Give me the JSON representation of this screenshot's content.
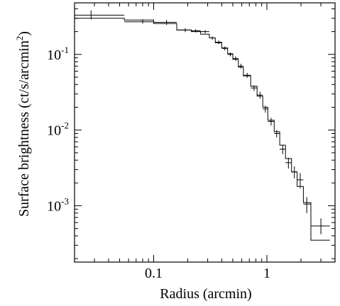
{
  "chart_data": {
    "type": "scatter",
    "xlabel": "Radius (arcmin)",
    "ylabel": "Surface brightness (ct/s/arcmin",
    "ylabel_sup": "2",
    "ylabel_close": ")",
    "xscale": "log",
    "yscale": "log",
    "xlim": [
      0.02,
      4.0
    ],
    "ylim": [
      0.00018,
      0.48
    ],
    "x_ticks": [
      {
        "value": 0.1,
        "label": "0.1"
      },
      {
        "value": 1,
        "label": "1"
      }
    ],
    "y_ticks": [
      {
        "value": 0.1,
        "label": "10",
        "exp": "-1"
      },
      {
        "value": 0.01,
        "label": "10",
        "exp": "-2"
      },
      {
        "value": 0.001,
        "label": "10",
        "exp": "-3"
      }
    ],
    "series": [
      {
        "kind": "data",
        "points": [
          {
            "x": 0.028,
            "xerr": [
              0.02,
              0.055
            ],
            "y": 0.33,
            "yerr": [
              0.29,
              0.38
            ]
          },
          {
            "x": 0.08,
            "xerr": [
              0.055,
              0.1
            ],
            "y": 0.27,
            "yerr": [
              0.255,
              0.29
            ]
          },
          {
            "x": 0.13,
            "xerr": [
              0.1,
              0.16
            ],
            "y": 0.265,
            "yerr": [
              0.245,
              0.285
            ]
          },
          {
            "x": 0.19,
            "xerr": [
              0.16,
              0.215
            ],
            "y": 0.21,
            "yerr": [
              0.197,
              0.222
            ]
          },
          {
            "x": 0.235,
            "xerr": [
              0.215,
              0.26
            ],
            "y": 0.205,
            "yerr": [
              0.195,
              0.215
            ]
          },
          {
            "x": 0.285,
            "xerr": [
              0.26,
              0.31
            ],
            "y": 0.2,
            "yerr": [
              0.19,
              0.21
            ]
          },
          {
            "x": 0.33,
            "xerr": [
              0.31,
              0.35
            ],
            "y": 0.165,
            "yerr": [
              0.157,
              0.173
            ]
          },
          {
            "x": 0.375,
            "xerr": [
              0.35,
              0.4
            ],
            "y": 0.145,
            "yerr": [
              0.137,
              0.153
            ]
          },
          {
            "x": 0.425,
            "xerr": [
              0.4,
              0.45
            ],
            "y": 0.12,
            "yerr": [
              0.113,
              0.127
            ]
          },
          {
            "x": 0.475,
            "xerr": [
              0.45,
              0.5
            ],
            "y": 0.1,
            "yerr": [
              0.094,
              0.106
            ]
          },
          {
            "x": 0.53,
            "xerr": [
              0.5,
              0.56
            ],
            "y": 0.088,
            "yerr": [
              0.082,
              0.094
            ]
          },
          {
            "x": 0.59,
            "xerr": [
              0.56,
              0.62
            ],
            "y": 0.07,
            "yerr": [
              0.065,
              0.075
            ]
          },
          {
            "x": 0.67,
            "xerr": [
              0.62,
              0.72
            ],
            "y": 0.053,
            "yerr": [
              0.049,
              0.057
            ]
          },
          {
            "x": 0.77,
            "xerr": [
              0.72,
              0.82
            ],
            "y": 0.036,
            "yerr": [
              0.033,
              0.039
            ]
          },
          {
            "x": 0.87,
            "xerr": [
              0.82,
              0.92
            ],
            "y": 0.029,
            "yerr": [
              0.026,
              0.032
            ]
          },
          {
            "x": 0.97,
            "xerr": [
              0.92,
              1.02
            ],
            "y": 0.019,
            "yerr": [
              0.017,
              0.021
            ]
          },
          {
            "x": 1.09,
            "xerr": [
              1.02,
              1.16
            ],
            "y": 0.013,
            "yerr": [
              0.0115,
              0.0145
            ]
          },
          {
            "x": 1.22,
            "xerr": [
              1.16,
              1.3
            ],
            "y": 0.009,
            "yerr": [
              0.008,
              0.01
            ]
          },
          {
            "x": 1.38,
            "xerr": [
              1.3,
              1.46
            ],
            "y": 0.0056,
            "yerr": [
              0.0048,
              0.0064
            ]
          },
          {
            "x": 1.55,
            "xerr": [
              1.46,
              1.65
            ],
            "y": 0.0037,
            "yerr": [
              0.0031,
              0.0043
            ]
          },
          {
            "x": 1.75,
            "xerr": [
              1.65,
              1.85
            ],
            "y": 0.0028,
            "yerr": [
              0.0023,
              0.0033
            ]
          },
          {
            "x": 1.97,
            "xerr": [
              1.85,
              2.1
            ],
            "y": 0.0022,
            "yerr": [
              0.0017,
              0.0027
            ]
          },
          {
            "x": 2.25,
            "xerr": [
              2.1,
              2.45
            ],
            "y": 0.00105,
            "yerr": [
              0.0008,
              0.0013
            ]
          },
          {
            "x": 3.0,
            "xerr": [
              2.45,
              3.6
            ],
            "y": 0.00054,
            "yerr": [
              0.00042,
              0.00068
            ]
          }
        ]
      },
      {
        "kind": "model-step",
        "edges": [
          0.02,
          0.055,
          0.1,
          0.16,
          0.215,
          0.26,
          0.31,
          0.35,
          0.4,
          0.45,
          0.5,
          0.56,
          0.62,
          0.72,
          0.82,
          0.92,
          1.02,
          1.16,
          1.3,
          1.46,
          1.65,
          1.85,
          2.1,
          2.45,
          3.6
        ],
        "values": [
          0.3,
          0.285,
          0.255,
          0.21,
          0.2,
          0.185,
          0.165,
          0.142,
          0.122,
          0.102,
          0.086,
          0.068,
          0.052,
          0.038,
          0.028,
          0.02,
          0.0135,
          0.0095,
          0.0063,
          0.0042,
          0.0028,
          0.0018,
          0.0011,
          0.00035
        ]
      }
    ],
    "grid": false,
    "legend": "none"
  }
}
